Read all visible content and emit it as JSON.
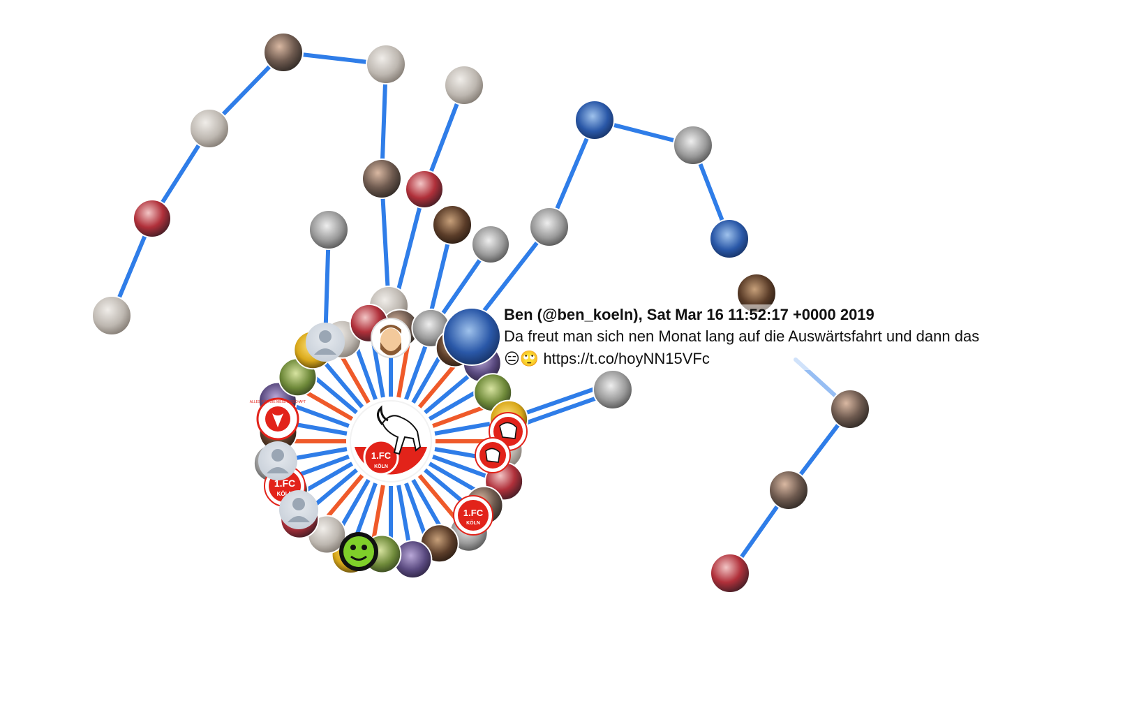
{
  "tooltip": {
    "header": "Ben (@ben_koeln), Sat Mar 16 11:52:17 +0000 2019",
    "text_line1": "Da freut man sich nen Monat lang auf die Auswärtsfahrt und dann das",
    "text_line2": "😑🙄 https://t.co/hoyNN15VFc"
  },
  "center_logo": {
    "label": "1.FC",
    "sub": "KÖLN"
  },
  "badges": {
    "fc": "1.FC",
    "koeln": "KÖLN",
    "ring_text": "ALLES FÜR DIE MEISTERSCHAFT"
  },
  "colors": {
    "edge_blue": "#2f7de8",
    "edge_orange": "#ef5a2a",
    "koeln_red": "#e2231a"
  }
}
